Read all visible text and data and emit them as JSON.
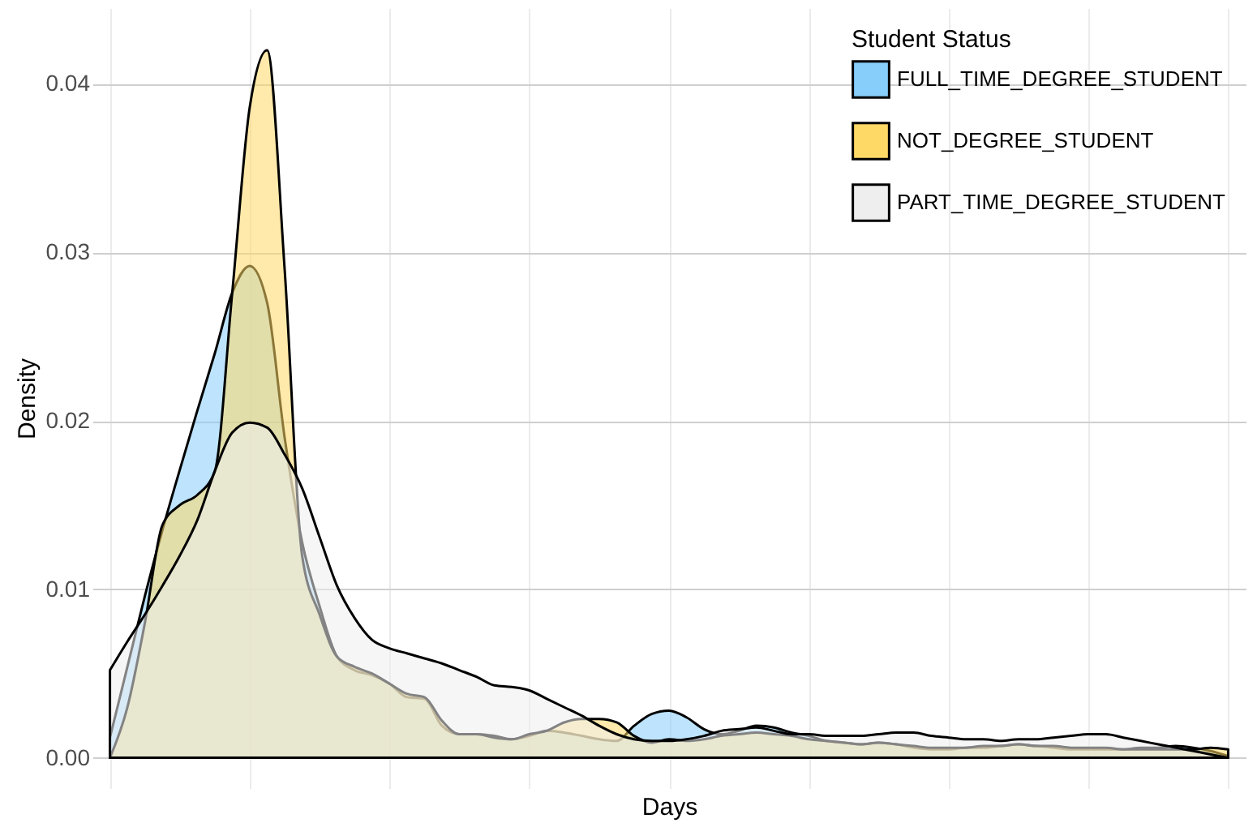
{
  "chart_data": {
    "type": "area",
    "xlabel": "Days",
    "ylabel": "Density",
    "legend_title": "Student Status",
    "legend": "top right",
    "grid": true,
    "tick_labels": "y",
    "categories": [
      null,
      null,
      null,
      null,
      null,
      null,
      null,
      null,
      null,
      null,
      null,
      null,
      null,
      null,
      null,
      null,
      null,
      null,
      null,
      null,
      null,
      null,
      null,
      null,
      null,
      null,
      null,
      null,
      null,
      null,
      null,
      null,
      null,
      null,
      null,
      null,
      null,
      null,
      null,
      null,
      null,
      null,
      null,
      null,
      null,
      null,
      null,
      null,
      null,
      null,
      null,
      null,
      null,
      null,
      null,
      null,
      null,
      null,
      null,
      null,
      null,
      null,
      null,
      null,
      null
    ],
    "ylim": [
      -0.0018,
      0.0445
    ],
    "yticks": [
      {
        "value": 0,
        "label": "0.00"
      },
      {
        "value": 0.01,
        "label": "0.01"
      },
      {
        "value": 0.02,
        "label": "0.02"
      },
      {
        "value": 0.03,
        "label": "0.03"
      },
      {
        "value": 0.04,
        "label": "0.04"
      }
    ],
    "series": [
      {
        "name": "FULL_TIME_DEGREE_STUDENT",
        "color": "#87cefa",
        "values": [
          0.0012,
          0.0054,
          0.0096,
          0.0135,
          0.0171,
          0.0206,
          0.024,
          0.0276,
          0.0292,
          0.027,
          0.019,
          0.0128,
          0.009,
          0.006,
          0.0052,
          0.0049,
          0.0044,
          0.0036,
          0.0035,
          0.0019,
          0.0014,
          0.0014,
          0.0013,
          0.0011,
          0.0013,
          0.0016,
          0.0015,
          0.0013,
          0.0011,
          0.001,
          0.0019,
          0.0026,
          0.0028,
          0.0024,
          0.0017,
          0.0014,
          0.0016,
          0.0019,
          0.0018,
          0.0015,
          0.0013,
          0.001,
          0.0009,
          0.0008,
          0.0009,
          0.0008,
          0.0006,
          0.0005,
          0.0005,
          0.0006,
          0.0006,
          0.0007,
          0.0008,
          0.0007,
          0.0006,
          0.0005,
          0.0005,
          0.0005,
          0.0005,
          0.0006,
          0.0006,
          0.0007,
          0.0006,
          0.0004,
          0.0001
        ]
      },
      {
        "name": "NOT_DEGREE_STUDENT",
        "color": "#ffd966",
        "values": [
          0,
          0.003,
          0.008,
          0.0138,
          0.015,
          0.0156,
          0.017,
          0.0276,
          0.0386,
          0.042,
          0.029,
          0.012,
          0.0085,
          0.006,
          0.0054,
          0.005,
          0.0044,
          0.0038,
          0.0036,
          0.0022,
          0.0014,
          0.0014,
          0.0012,
          0.0011,
          0.0014,
          0.0016,
          0.0021,
          0.0023,
          0.0023,
          0.0021,
          0.0013,
          0.0009,
          0.0011,
          0.001,
          0.0011,
          0.0013,
          0.0014,
          0.0015,
          0.0014,
          0.0013,
          0.0011,
          0.001,
          0.0009,
          0.0008,
          0.0009,
          0.0008,
          0.0007,
          0.0006,
          0.0006,
          0.0006,
          0.0007,
          0.0007,
          0.0008,
          0.0007,
          0.0007,
          0.0006,
          0.0006,
          0.0006,
          0.0005,
          0.0005,
          0.0005,
          0.0005,
          0.0005,
          0.0006,
          0.0005
        ]
      },
      {
        "name": "PART_TIME_DEGREE_STUDENT",
        "color": "#eeeeee",
        "values": [
          0.0052,
          0.0069,
          0.0085,
          0.0102,
          0.012,
          0.0141,
          0.017,
          0.0193,
          0.0199,
          0.0196,
          0.018,
          0.016,
          0.0131,
          0.0102,
          0.0083,
          0.007,
          0.0065,
          0.0062,
          0.0059,
          0.0056,
          0.0052,
          0.0048,
          0.0043,
          0.0042,
          0.004,
          0.0035,
          0.003,
          0.0025,
          0.0019,
          0.0014,
          0.0011,
          0.001,
          0.001,
          0.0011,
          0.0013,
          0.0016,
          0.0017,
          0.0018,
          0.0016,
          0.0014,
          0.0014,
          0.0013,
          0.0013,
          0.0013,
          0.0014,
          0.0015,
          0.0015,
          0.0013,
          0.0012,
          0.0011,
          0.0011,
          0.001,
          0.0011,
          0.0011,
          0.0012,
          0.0013,
          0.0014,
          0.0014,
          0.0012,
          0.001,
          0.0008,
          0.0006,
          0.0004,
          0.0002,
          0
        ]
      }
    ]
  }
}
